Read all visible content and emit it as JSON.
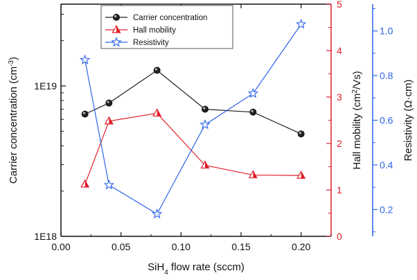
{
  "chart_data": {
    "type": "line",
    "x": [
      0.02,
      0.04,
      0.08,
      0.12,
      0.16,
      0.2
    ],
    "xlim": [
      0.0,
      0.225
    ],
    "xticks": [
      0.0,
      0.05,
      0.1,
      0.15,
      0.2
    ],
    "xtick_labels": [
      "0.00",
      "0.05",
      "0.10",
      "0.15",
      "0.20"
    ],
    "xlabel_parts": [
      "SiH",
      "4",
      " flow rate (sccm)"
    ],
    "y_left": {
      "label_parts": [
        "Carrier concentration (cm",
        "-3",
        ")"
      ],
      "scale": "log",
      "lim": [
        1e+18,
        3.5e+19
      ],
      "ticks": [
        1e+18,
        1e+19
      ],
      "tick_labels": [
        "1E18",
        "1E19"
      ],
      "color": "#111111"
    },
    "y_right1": {
      "label_parts": [
        "Hall mobility (cm",
        "2",
        "/Vs)"
      ],
      "lim": [
        0,
        5
      ],
      "ticks": [
        0,
        1,
        2,
        3,
        4,
        5
      ],
      "tick_labels": [
        "0",
        "1",
        "2",
        "3",
        "4",
        "5"
      ],
      "color": "#e0202a"
    },
    "y_right2": {
      "label": "Resistivity (Ω·cm)",
      "lim": [
        0.08,
        1.12
      ],
      "ticks": [
        0.2,
        0.4,
        0.6,
        0.8,
        1.0
      ],
      "tick_labels": [
        "0.2",
        "0.4",
        "0.6",
        "0.8",
        "1.0"
      ],
      "color": "#2b63e8"
    },
    "series": [
      {
        "name": "Carrier concentration",
        "axis": "y_left",
        "marker": "circle",
        "color": "#222222",
        "values": [
          6.5e+18,
          7.7e+18,
          1.27e+19,
          7e+18,
          6.7e+18,
          4.8e+18
        ]
      },
      {
        "name": "Hall mobility",
        "axis": "y_right1",
        "marker": "triangle",
        "color": "#e0202a",
        "values": [
          1.12,
          2.48,
          2.65,
          1.53,
          1.32,
          1.31
        ]
      },
      {
        "name": "Resistivity",
        "axis": "y_right2",
        "marker": "star",
        "color": "#2b63e8",
        "values": [
          0.87,
          0.31,
          0.18,
          0.58,
          0.72,
          1.03
        ]
      }
    ],
    "legend_position": "top-left",
    "grid": false
  }
}
